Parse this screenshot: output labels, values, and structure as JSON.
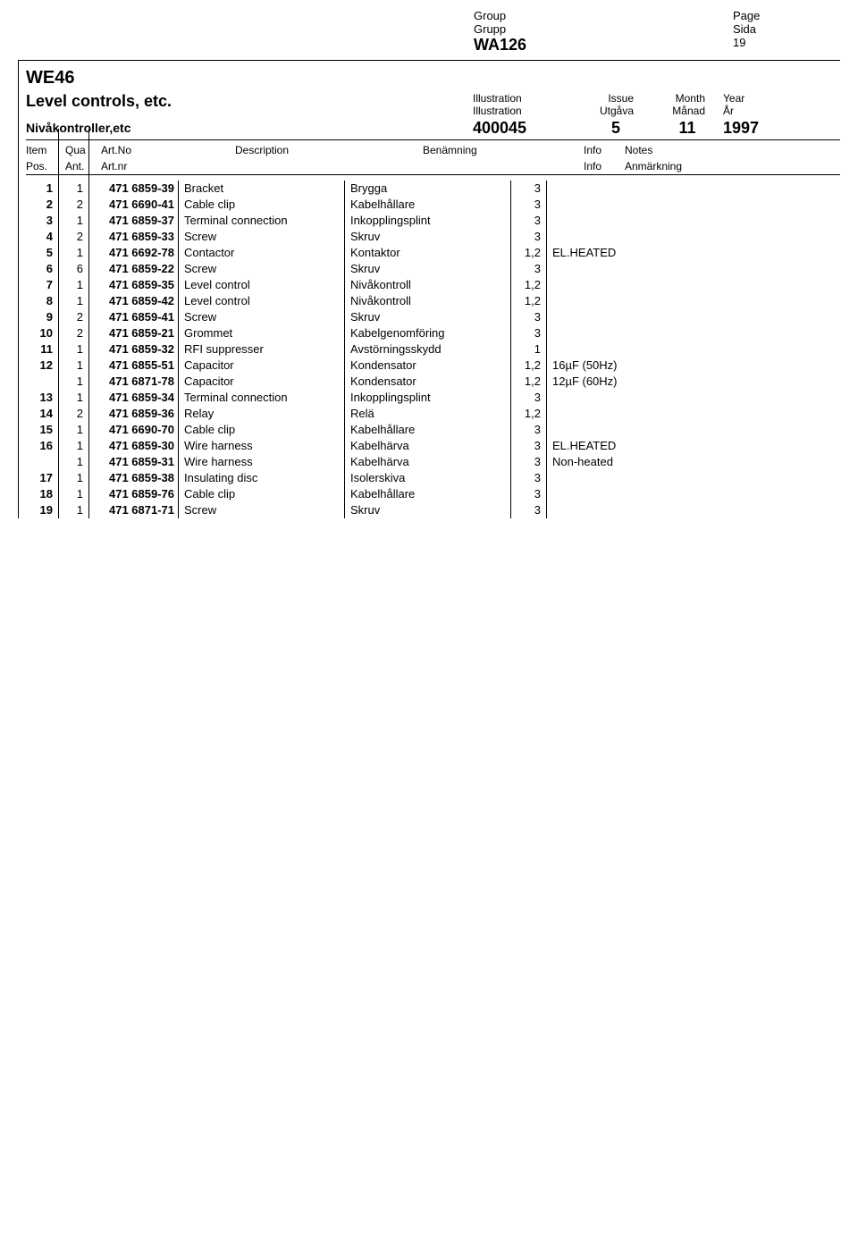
{
  "header": {
    "group_en": "Group",
    "group_sv": "Grupp",
    "page_en": "Page",
    "page_sv": "Sida",
    "group_value": "WA126",
    "page_value": "19"
  },
  "model": "WE46",
  "title_en": "Level controls, etc.",
  "title_sv": "Nivåkontroller,etc",
  "meta_labels": {
    "illustration_en": "Illustration",
    "illustration_sv": "Illustration",
    "issue_en": "Issue",
    "issue_sv": "Utgåva",
    "month_en": "Month",
    "month_sv": "Månad",
    "year_en": "Year",
    "year_sv": "År"
  },
  "meta_values": {
    "illustration": "400045",
    "issue": "5",
    "month": "11",
    "year": "1997"
  },
  "col_headers": {
    "item_en": "Item",
    "item_sv": "Pos.",
    "qua_en": "Qua",
    "qua_sv": "Ant.",
    "art_en": "Art.No",
    "art_sv": "Art.nr",
    "desc": "Description",
    "ben": "Benämning",
    "info_en": "Info",
    "info_sv": "Info",
    "notes_en": "Notes",
    "notes_sv": "Anmärkning"
  },
  "rows": [
    {
      "item": "1",
      "qua": "1",
      "art": "471 6859-39",
      "desc": "Bracket",
      "ben": "Brygga",
      "info": "3",
      "notes": ""
    },
    {
      "item": "2",
      "qua": "2",
      "art": "471 6690-41",
      "desc": "Cable clip",
      "ben": "Kabelhållare",
      "info": "3",
      "notes": ""
    },
    {
      "item": "3",
      "qua": "1",
      "art": "471 6859-37",
      "desc": "Terminal connection",
      "ben": "Inkopplingsplint",
      "info": "3",
      "notes": ""
    },
    {
      "item": "4",
      "qua": "2",
      "art": "471 6859-33",
      "desc": "Screw",
      "ben": "Skruv",
      "info": "3",
      "notes": ""
    },
    {
      "item": "5",
      "qua": "1",
      "art": "471 6692-78",
      "desc": "Contactor",
      "ben": "Kontaktor",
      "info": "1,2",
      "notes": "EL.HEATED"
    },
    {
      "item": "6",
      "qua": "6",
      "art": "471 6859-22",
      "desc": "Screw",
      "ben": "Skruv",
      "info": "3",
      "notes": ""
    },
    {
      "item": "7",
      "qua": "1",
      "art": "471 6859-35",
      "desc": "Level control",
      "ben": "Nivåkontroll",
      "info": "1,2",
      "notes": ""
    },
    {
      "item": "8",
      "qua": "1",
      "art": "471 6859-42",
      "desc": "Level control",
      "ben": "Nivåkontroll",
      "info": "1,2",
      "notes": ""
    },
    {
      "item": "9",
      "qua": "2",
      "art": "471 6859-41",
      "desc": "Screw",
      "ben": "Skruv",
      "info": "3",
      "notes": ""
    },
    {
      "item": "10",
      "qua": "2",
      "art": "471 6859-21",
      "desc": "Grommet",
      "ben": "Kabelgenomföring",
      "info": "3",
      "notes": ""
    },
    {
      "item": "11",
      "qua": "1",
      "art": "471 6859-32",
      "desc": "RFI suppresser",
      "ben": "Avstörningsskydd",
      "info": "1",
      "notes": ""
    },
    {
      "item": "12",
      "qua": "1",
      "art": "471 6855-51",
      "desc": "Capacitor",
      "ben": "Kondensator",
      "info": "1,2",
      "notes": "16µF (50Hz)"
    },
    {
      "item": "",
      "qua": "1",
      "art": "471 6871-78",
      "desc": "Capacitor",
      "ben": "Kondensator",
      "info": "1,2",
      "notes": "12µF (60Hz)"
    },
    {
      "item": "13",
      "qua": "1",
      "art": "471 6859-34",
      "desc": "Terminal connection",
      "ben": "Inkopplingsplint",
      "info": "3",
      "notes": ""
    },
    {
      "item": "14",
      "qua": "2",
      "art": "471 6859-36",
      "desc": "Relay",
      "ben": "Relä",
      "info": "1,2",
      "notes": ""
    },
    {
      "item": "15",
      "qua": "1",
      "art": "471 6690-70",
      "desc": "Cable clip",
      "ben": "Kabelhållare",
      "info": "3",
      "notes": ""
    },
    {
      "item": "16",
      "qua": "1",
      "art": "471 6859-30",
      "desc": "Wire harness",
      "ben": "Kabelhärva",
      "info": "3",
      "notes": "EL.HEATED"
    },
    {
      "item": "",
      "qua": "1",
      "art": "471 6859-31",
      "desc": "Wire harness",
      "ben": "Kabelhärva",
      "info": "3",
      "notes": "Non-heated"
    },
    {
      "item": "17",
      "qua": "1",
      "art": "471 6859-38",
      "desc": "Insulating disc",
      "ben": "Isolerskiva",
      "info": "3",
      "notes": ""
    },
    {
      "item": "18",
      "qua": "1",
      "art": "471 6859-76",
      "desc": "Cable clip",
      "ben": "Kabelhållare",
      "info": "3",
      "notes": ""
    },
    {
      "item": "19",
      "qua": "1",
      "art": "471 6871-71",
      "desc": "Screw",
      "ben": "Skruv",
      "info": "3",
      "notes": ""
    }
  ]
}
